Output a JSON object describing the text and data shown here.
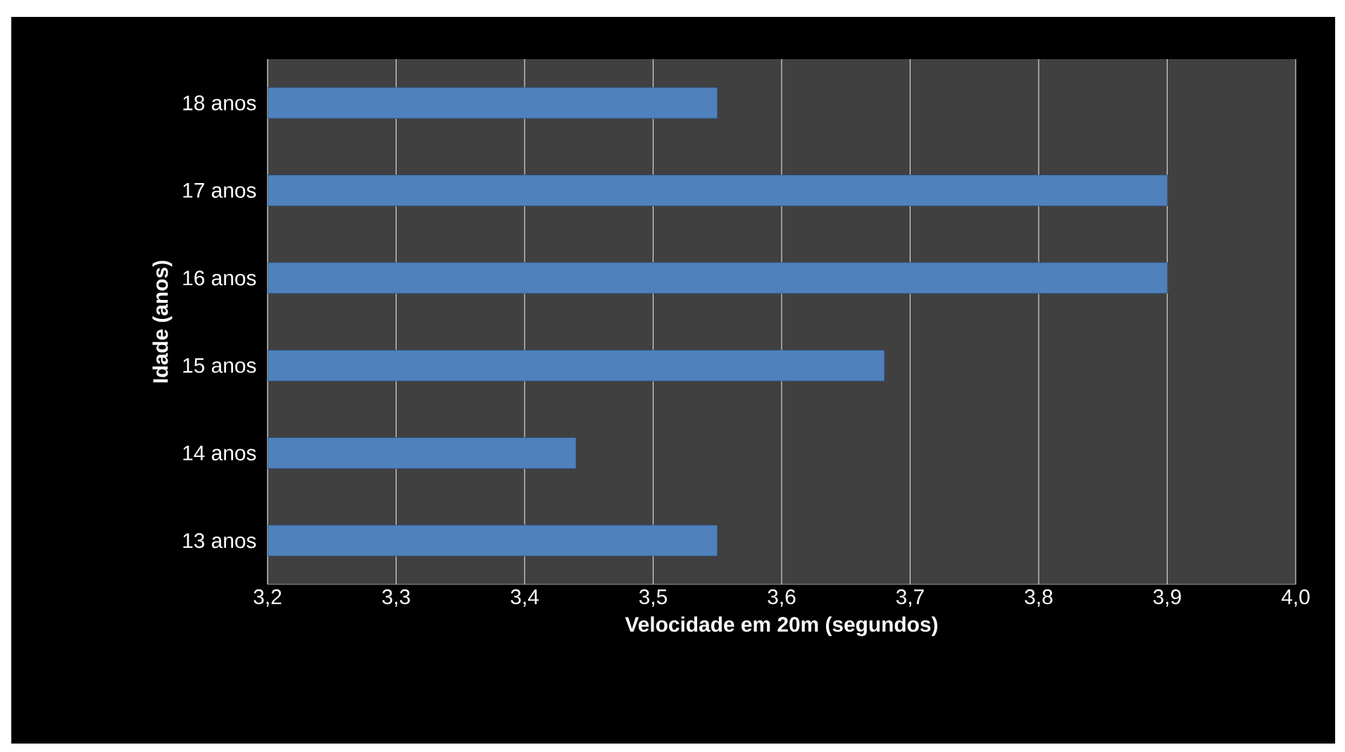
{
  "chart_data": {
    "type": "bar",
    "orientation": "horizontal",
    "xlabel": "Velocidade em 20m (segundos)",
    "ylabel": "Idade (anos)",
    "categories": [
      "18 anos",
      "17 anos",
      "16 anos",
      "15 anos",
      "14 anos",
      "13 anos"
    ],
    "values": [
      3.55,
      3.9,
      3.9,
      3.68,
      3.44,
      3.55
    ],
    "color": "#4f81bd",
    "xlim": [
      3.2,
      4.0
    ],
    "xticks": [
      {
        "value": 3.2,
        "label": "3,2"
      },
      {
        "value": 3.3,
        "label": "3,3"
      },
      {
        "value": 3.4,
        "label": "3,4"
      },
      {
        "value": 3.5,
        "label": "3,5"
      },
      {
        "value": 3.6,
        "label": "3,6"
      },
      {
        "value": 3.7,
        "label": "3,7"
      },
      {
        "value": 3.8,
        "label": "3,8"
      },
      {
        "value": 3.9,
        "label": "3,9"
      },
      {
        "value": 4.0,
        "label": "4,0"
      }
    ],
    "grid": "x"
  }
}
